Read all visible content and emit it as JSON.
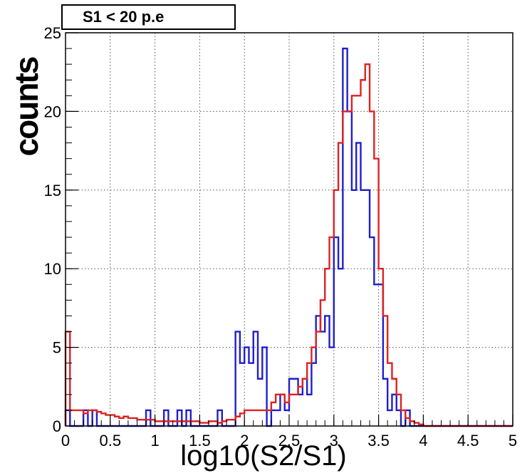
{
  "chart_data": {
    "type": "histogram",
    "title": "S1 < 20 p.e",
    "xlabel": "log10(S2/S1)",
    "ylabel": "counts",
    "xlim": [
      0,
      5
    ],
    "ylim": [
      0,
      25
    ],
    "grid": true,
    "x_ticks": [
      "0",
      "0.5",
      "1",
      "1.5",
      "2",
      "2.5",
      "3",
      "3.5",
      "4",
      "4.5",
      "5"
    ],
    "y_ticks": [
      "0",
      "5",
      "10",
      "15",
      "20",
      "25"
    ],
    "bin_width": 0.05,
    "series": [
      {
        "color": "#1f1fcc",
        "values": [
          1,
          0,
          0,
          0,
          1,
          0,
          1,
          0,
          0,
          0,
          0,
          0,
          0,
          0,
          0,
          0,
          0,
          0,
          1,
          0,
          0,
          0,
          1,
          0,
          0,
          1,
          0,
          1,
          0,
          0,
          0,
          0,
          0,
          0,
          1,
          0,
          0,
          0,
          6,
          4,
          5,
          4,
          6,
          3,
          5,
          0,
          1,
          1,
          2,
          1,
          3,
          3,
          2,
          3,
          2,
          4,
          7,
          6,
          7,
          5,
          12,
          10,
          24,
          20,
          15,
          18,
          15,
          15,
          12,
          9,
          9,
          3,
          1,
          2,
          1,
          0,
          1,
          0,
          0,
          0,
          0,
          0,
          0,
          0,
          0,
          0,
          0,
          0,
          0,
          0,
          0,
          0,
          0,
          0,
          0,
          0,
          0,
          0,
          0,
          0
        ]
      },
      {
        "color": "#dd2222",
        "values": [
          6,
          1,
          1,
          1,
          0.8,
          1,
          1,
          0.9,
          0.8,
          0.7,
          0.7,
          0.6,
          0.5,
          0.6,
          0.5,
          0.5,
          0.4,
          0.4,
          0.4,
          0.4,
          0.3,
          0.3,
          0.3,
          0.3,
          0.3,
          0.3,
          0.3,
          0.3,
          0.3,
          0.3,
          0.2,
          0.2,
          0.3,
          0.3,
          0.2,
          0.3,
          0.4,
          0.4,
          0.6,
          0.8,
          1,
          1,
          1,
          1,
          1,
          1,
          1.5,
          2,
          2,
          1.5,
          2,
          2,
          2.5,
          3,
          4,
          5,
          6,
          8,
          10,
          12,
          15,
          18,
          20,
          20,
          21,
          21,
          22,
          23,
          20,
          17,
          10,
          7,
          4,
          3,
          2,
          1,
          0.5,
          0.3,
          0.2,
          0.1,
          0,
          0,
          0,
          0,
          0,
          0,
          0,
          0,
          0,
          0,
          0,
          0,
          0,
          0,
          0,
          0,
          0,
          0,
          0,
          0
        ]
      }
    ]
  }
}
